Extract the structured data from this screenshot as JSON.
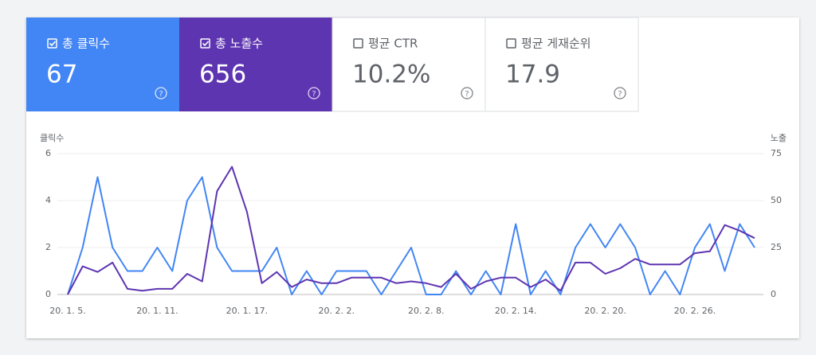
{
  "cards": [
    {
      "label": "총 클릭수",
      "value": "67",
      "checked": true,
      "color": "#4285f4"
    },
    {
      "label": "총 노출수",
      "value": "656",
      "checked": true,
      "color": "#5e35b1"
    },
    {
      "label": "평균 CTR",
      "value": "10.2%",
      "checked": false,
      "color": "#ffffff"
    },
    {
      "label": "평균 게재순위",
      "value": "17.9",
      "checked": false,
      "color": "#ffffff"
    }
  ],
  "chart_data": {
    "type": "line",
    "ylabel": "클릭수",
    "y2label": "노출",
    "categories": [
      "20. 1. 5.",
      null,
      null,
      null,
      null,
      null,
      "20. 1. 11.",
      null,
      null,
      null,
      null,
      null,
      "20. 1. 17.",
      null,
      null,
      null,
      null,
      null,
      "20. 2. 2.",
      null,
      null,
      null,
      null,
      null,
      "20. 2. 8.",
      null,
      null,
      null,
      null,
      null,
      "20. 2. 14.",
      null,
      null,
      null,
      null,
      null,
      "20. 2. 20.",
      null,
      null,
      null,
      null,
      null,
      "20. 2. 26.",
      null,
      null,
      null,
      null
    ],
    "series": [
      {
        "name": "클릭수",
        "color": "#4285f4",
        "values": [
          0,
          2,
          5,
          2,
          1,
          1,
          2,
          1,
          4,
          5,
          2,
          1,
          1,
          1,
          2,
          0,
          1,
          0,
          1,
          1,
          1,
          0,
          1,
          2,
          0,
          0,
          1,
          0,
          1,
          0,
          3,
          0,
          1,
          0,
          2,
          3,
          2,
          3,
          2,
          0,
          1,
          0,
          2,
          3,
          1,
          3,
          2
        ]
      },
      {
        "name": "노출",
        "color": "#5e35b1",
        "axis": "y2",
        "values": [
          0,
          15,
          12,
          17,
          3,
          2,
          3,
          3,
          11,
          7,
          55,
          68,
          44,
          6,
          12,
          4,
          8,
          6,
          6,
          9,
          9,
          9,
          6,
          7,
          6,
          4,
          11,
          3,
          7,
          9,
          9,
          4,
          8,
          2,
          17,
          17,
          11,
          14,
          19,
          16,
          16,
          16,
          22,
          23,
          37,
          34,
          30
        ]
      }
    ],
    "ylim": [
      0,
      6
    ],
    "yticks": [
      0,
      2,
      4,
      6
    ],
    "y2lim": [
      0,
      75
    ],
    "y2ticks": [
      0,
      25,
      50,
      75
    ],
    "grid": true
  }
}
